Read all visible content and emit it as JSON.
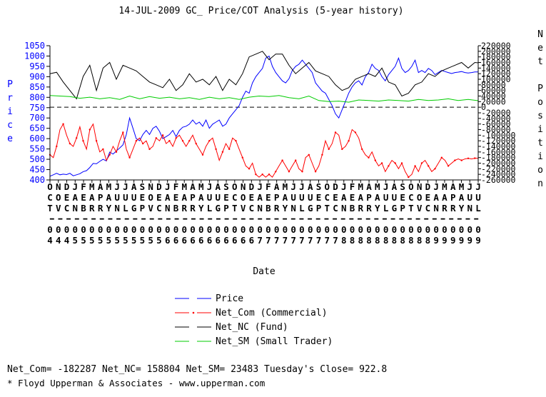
{
  "chart_data": {
    "type": "line",
    "title": "14-JUL-2009 GC_ Price/COT Analysis (5-year history)",
    "xlabel": "Date",
    "ylabel": "Price",
    "y2label": "Net Position",
    "ylim": [
      400,
      1050
    ],
    "y2lim": [
      -260000,
      220000
    ],
    "y_ticks": [
      400,
      450,
      500,
      550,
      600,
      650,
      700,
      750,
      800,
      850,
      900,
      950,
      1000,
      1050
    ],
    "y2_ticks": [
      220000,
      200000,
      180000,
      160000,
      140000,
      120000,
      100000,
      80000,
      60000,
      40000,
      20000,
      0,
      -20000,
      -40000,
      -60000,
      -80000,
      -100000,
      -120000,
      -140000,
      -160000,
      -180000,
      -200000,
      -220000,
      -240000,
      -260000
    ],
    "x_tick_labels": [
      {
        "m": "O",
        "a": "C",
        "b": "T",
        "yr": "04"
      },
      {
        "m": "N",
        "a": "O",
        "b": "V",
        "yr": "04"
      },
      {
        "m": "D",
        "a": "E",
        "b": "C",
        "yr": "04"
      },
      {
        "m": "J",
        "a": "A",
        "b": "N",
        "yr": "05"
      },
      {
        "m": "F",
        "a": "E",
        "b": "B",
        "yr": "05"
      },
      {
        "m": "M",
        "a": "A",
        "b": "R",
        "yr": "05"
      },
      {
        "m": "A",
        "a": "P",
        "b": "R",
        "yr": "05"
      },
      {
        "m": "M",
        "a": "A",
        "b": "Y",
        "yr": "05"
      },
      {
        "m": "J",
        "a": "U",
        "b": "N",
        "yr": "05"
      },
      {
        "m": "J",
        "a": "U",
        "b": "L",
        "yr": "05"
      },
      {
        "m": "A",
        "a": "U",
        "b": "G",
        "yr": "05"
      },
      {
        "m": "S",
        "a": "E",
        "b": "P",
        "yr": "05"
      },
      {
        "m": "N",
        "a": "O",
        "b": "V",
        "yr": "05"
      },
      {
        "m": "D",
        "a": "E",
        "b": "C",
        "yr": "05"
      },
      {
        "m": "J",
        "a": "A",
        "b": "N",
        "yr": "06"
      },
      {
        "m": "F",
        "a": "E",
        "b": "B",
        "yr": "06"
      },
      {
        "m": "M",
        "a": "A",
        "b": "R",
        "yr": "06"
      },
      {
        "m": "A",
        "a": "P",
        "b": "R",
        "yr": "06"
      },
      {
        "m": "M",
        "a": "A",
        "b": "Y",
        "yr": "06"
      },
      {
        "m": "J",
        "a": "U",
        "b": "L",
        "yr": "06"
      },
      {
        "m": "A",
        "a": "U",
        "b": "G",
        "yr": "06"
      },
      {
        "m": "S",
        "a": "E",
        "b": "P",
        "yr": "06"
      },
      {
        "m": "O",
        "a": "C",
        "b": "T",
        "yr": "06"
      },
      {
        "m": "N",
        "a": "O",
        "b": "V",
        "yr": "06"
      },
      {
        "m": "D",
        "a": "E",
        "b": "C",
        "yr": "06"
      },
      {
        "m": "J",
        "a": "A",
        "b": "N",
        "yr": "07"
      },
      {
        "m": "F",
        "a": "E",
        "b": "B",
        "yr": "07"
      },
      {
        "m": "A",
        "a": "P",
        "b": "R",
        "yr": "07"
      },
      {
        "m": "M",
        "a": "A",
        "b": "Y",
        "yr": "07"
      },
      {
        "m": "J",
        "a": "U",
        "b": "N",
        "yr": "07"
      },
      {
        "m": "J",
        "a": "U",
        "b": "L",
        "yr": "07"
      },
      {
        "m": "A",
        "a": "U",
        "b": "G",
        "yr": "07"
      },
      {
        "m": "S",
        "a": "E",
        "b": "P",
        "yr": "07"
      },
      {
        "m": "O",
        "a": "C",
        "b": "T",
        "yr": "07"
      },
      {
        "m": "D",
        "a": "E",
        "b": "C",
        "yr": "07"
      },
      {
        "m": "J",
        "a": "A",
        "b": "N",
        "yr": "08"
      },
      {
        "m": "F",
        "a": "E",
        "b": "B",
        "yr": "08"
      },
      {
        "m": "M",
        "a": "A",
        "b": "R",
        "yr": "08"
      },
      {
        "m": "A",
        "a": "P",
        "b": "R",
        "yr": "08"
      },
      {
        "m": "M",
        "a": "A",
        "b": "Y",
        "yr": "08"
      },
      {
        "m": "J",
        "a": "U",
        "b": "L",
        "yr": "08"
      },
      {
        "m": "A",
        "a": "U",
        "b": "G",
        "yr": "08"
      },
      {
        "m": "S",
        "a": "E",
        "b": "P",
        "yr": "08"
      },
      {
        "m": "O",
        "a": "C",
        "b": "T",
        "yr": "08"
      },
      {
        "m": "N",
        "a": "O",
        "b": "V",
        "yr": "08"
      },
      {
        "m": "D",
        "a": "E",
        "b": "C",
        "yr": "08"
      },
      {
        "m": "J",
        "a": "A",
        "b": "N",
        "yr": "09"
      },
      {
        "m": "M",
        "a": "A",
        "b": "R",
        "yr": "09"
      },
      {
        "m": "A",
        "a": "P",
        "b": "R",
        "yr": "09"
      },
      {
        "m": "M",
        "a": "A",
        "b": "Y",
        "yr": "09"
      },
      {
        "m": "J",
        "a": "U",
        "b": "N",
        "yr": "09"
      },
      {
        "m": "J",
        "a": "U",
        "b": "L",
        "yr": "09"
      }
    ],
    "series": [
      {
        "name": "Price",
        "axis": "left",
        "color": "#0000ff",
        "style": "solid",
        "x": [
          0,
          2,
          4,
          6,
          8,
          10,
          12,
          14,
          16,
          18,
          20,
          22,
          24,
          26,
          28,
          30,
          32,
          34,
          36,
          38,
          40,
          42,
          44,
          46,
          48,
          50,
          52,
          54,
          56,
          58,
          60,
          62,
          64,
          66,
          68,
          70,
          72,
          74,
          76,
          78,
          80,
          82,
          84,
          86,
          88,
          90,
          92,
          94,
          96,
          98,
          100,
          102,
          104,
          106,
          108,
          110,
          112,
          114,
          116,
          118,
          120,
          122,
          124,
          126,
          128,
          130,
          132,
          134,
          136,
          138,
          140,
          142,
          144,
          146,
          148,
          150,
          152,
          154,
          156,
          158,
          160,
          162,
          164,
          166,
          168,
          170,
          172,
          174,
          176,
          178,
          180,
          182,
          184,
          186,
          188,
          190,
          192,
          194,
          196,
          198,
          200,
          202,
          204,
          206,
          208,
          210,
          212,
          214,
          216,
          218,
          220,
          222,
          224,
          226,
          228,
          230,
          232,
          234,
          236,
          238,
          240,
          242,
          244,
          246,
          248,
          250,
          252,
          254,
          256,
          258
        ],
        "values": [
          418,
          425,
          432,
          425,
          428,
          426,
          432,
          420,
          425,
          430,
          440,
          445,
          460,
          480,
          478,
          490,
          500,
          492,
          535,
          525,
          540,
          555,
          570,
          620,
          700,
          650,
          600,
          590,
          620,
          640,
          620,
          650,
          660,
          635,
          600,
          610,
          620,
          640,
          610,
          640,
          655,
          660,
          670,
          690,
          670,
          680,
          660,
          690,
          650,
          670,
          680,
          690,
          660,
          670,
          700,
          720,
          740,
          760,
          800,
          830,
          820,
          870,
          900,
          920,
          940,
          990,
          1000,
          950,
          920,
          900,
          880,
          870,
          890,
          930,
          950,
          960,
          980,
          960,
          940,
          920,
          870,
          850,
          830,
          820,
          790,
          760,
          720,
          700,
          740,
          780,
          820,
          850,
          870,
          880,
          860,
          900,
          920,
          960,
          940,
          930,
          900,
          880,
          910,
          930,
          950,
          990,
          940,
          920,
          930,
          950,
          980,
          920,
          930,
          920,
          940,
          930,
          910,
          920,
          930,
          925,
          920,
          915,
          920,
          922,
          925,
          920,
          918,
          920,
          923,
          922.8
        ]
      },
      {
        "name": "Net_Com (Commercial)",
        "axis": "right",
        "color": "#ff0000",
        "style": "dash-dot",
        "x": [
          0,
          2,
          4,
          6,
          8,
          10,
          12,
          14,
          16,
          18,
          20,
          22,
          24,
          26,
          28,
          30,
          32,
          34,
          36,
          38,
          40,
          42,
          44,
          46,
          48,
          50,
          52,
          54,
          56,
          58,
          60,
          62,
          64,
          66,
          68,
          70,
          72,
          74,
          76,
          78,
          80,
          82,
          84,
          86,
          88,
          90,
          92,
          94,
          96,
          98,
          100,
          102,
          104,
          106,
          108,
          110,
          112,
          114,
          116,
          118,
          120,
          122,
          124,
          126,
          128,
          130,
          132,
          134,
          136,
          138,
          140,
          142,
          144,
          146,
          148,
          150,
          152,
          154,
          156,
          158,
          160,
          162,
          164,
          166,
          168,
          170,
          172,
          174,
          176,
          178,
          180,
          182,
          184,
          186,
          188,
          190,
          192,
          194,
          196,
          198,
          200,
          202,
          204,
          206,
          208,
          210,
          212,
          214,
          216,
          218,
          220,
          222,
          224,
          226,
          228,
          230,
          232,
          234,
          236,
          238,
          240,
          242,
          244,
          246,
          248,
          250,
          252,
          254,
          256,
          258
        ],
        "values": [
          -170000,
          -180000,
          -140000,
          -80000,
          -60000,
          -100000,
          -130000,
          -140000,
          -110000,
          -70000,
          -120000,
          -150000,
          -80000,
          -60000,
          -120000,
          -160000,
          -150000,
          -190000,
          -170000,
          -140000,
          -160000,
          -120000,
          -90000,
          -150000,
          -180000,
          -150000,
          -120000,
          -110000,
          -130000,
          -120000,
          -150000,
          -140000,
          -110000,
          -120000,
          -100000,
          -130000,
          -120000,
          -140000,
          -110000,
          -100000,
          -120000,
          -140000,
          -120000,
          -100000,
          -130000,
          -150000,
          -170000,
          -140000,
          -120000,
          -110000,
          -150000,
          -190000,
          -160000,
          -130000,
          -150000,
          -110000,
          -120000,
          -150000,
          -180000,
          -210000,
          -220000,
          -200000,
          -240000,
          -250000,
          -240000,
          -250000,
          -240000,
          -250000,
          -230000,
          -210000,
          -190000,
          -210000,
          -230000,
          -210000,
          -190000,
          -220000,
          -230000,
          -180000,
          -170000,
          -200000,
          -230000,
          -210000,
          -170000,
          -120000,
          -150000,
          -130000,
          -90000,
          -100000,
          -150000,
          -140000,
          -120000,
          -80000,
          -90000,
          -110000,
          -150000,
          -170000,
          -180000,
          -160000,
          -190000,
          -210000,
          -200000,
          -230000,
          -210000,
          -190000,
          -200000,
          -220000,
          -200000,
          -230000,
          -250000,
          -240000,
          -210000,
          -230000,
          -200000,
          -190000,
          -210000,
          -230000,
          -220000,
          -200000,
          -180000,
          -190000,
          -210000,
          -200000,
          -190000,
          -185000,
          -190000,
          -185000,
          -183000,
          -185000,
          -182287,
          -182287
        ]
      },
      {
        "name": "Net_NC (Fund)",
        "axis": "right",
        "color": "#000000",
        "style": "solid",
        "x": [
          0,
          4,
          8,
          12,
          16,
          20,
          24,
          28,
          32,
          36,
          40,
          44,
          48,
          52,
          56,
          60,
          64,
          68,
          72,
          76,
          80,
          84,
          88,
          92,
          96,
          100,
          104,
          108,
          112,
          116,
          120,
          124,
          128,
          132,
          136,
          140,
          144,
          148,
          152,
          156,
          160,
          164,
          168,
          172,
          176,
          180,
          184,
          188,
          192,
          196,
          200,
          204,
          208,
          212,
          216,
          220,
          224,
          228,
          232,
          236,
          240,
          244,
          248,
          252,
          256,
          258
        ],
        "values": [
          120000,
          125000,
          90000,
          60000,
          30000,
          110000,
          150000,
          60000,
          140000,
          160000,
          100000,
          150000,
          140000,
          130000,
          110000,
          90000,
          80000,
          70000,
          100000,
          60000,
          80000,
          120000,
          90000,
          100000,
          80000,
          110000,
          60000,
          100000,
          80000,
          120000,
          180000,
          190000,
          200000,
          170000,
          190000,
          190000,
          150000,
          120000,
          140000,
          160000,
          130000,
          120000,
          110000,
          80000,
          60000,
          70000,
          100000,
          110000,
          120000,
          110000,
          140000,
          90000,
          80000,
          40000,
          50000,
          80000,
          90000,
          120000,
          110000,
          130000,
          140000,
          150000,
          160000,
          140000,
          160000,
          158804
        ]
      },
      {
        "name": "Net_SM (Small Trader)",
        "axis": "right",
        "color": "#00cc00",
        "style": "solid",
        "x": [
          0,
          6,
          12,
          18,
          24,
          30,
          36,
          42,
          48,
          54,
          60,
          66,
          72,
          78,
          84,
          90,
          96,
          102,
          108,
          114,
          120,
          126,
          132,
          138,
          144,
          150,
          156,
          162,
          168,
          174,
          180,
          186,
          192,
          198,
          204,
          210,
          216,
          222,
          228,
          234,
          240,
          246,
          252,
          258
        ],
        "values": [
          42000,
          40000,
          38000,
          32000,
          36000,
          30000,
          34000,
          28000,
          40000,
          30000,
          38000,
          32000,
          36000,
          30000,
          34000,
          28000,
          36000,
          30000,
          34000,
          28000,
          36000,
          40000,
          38000,
          42000,
          34000,
          30000,
          40000,
          24000,
          20000,
          22000,
          18000,
          26000,
          24000,
          22000,
          26000,
          24000,
          22000,
          28000,
          24000,
          26000,
          30000,
          24000,
          28000,
          23483
        ]
      }
    ],
    "legend": {
      "placement": "bottom-center",
      "entries": [
        "Price",
        "Net_Com (Commercial)",
        "Net_NC (Fund)",
        "Net_SM (Small Trader)"
      ]
    },
    "grid": false,
    "reference_line": {
      "axis": "right",
      "value": 0,
      "style": "dashed"
    }
  },
  "footer": {
    "summary": "Net_Com= -182287 Net_NC= 158804 Net_SM= 23483 Tuesday's Close= 922.8",
    "credit": "* Floyd Upperman & Associates - www.upperman.com"
  },
  "colors": {
    "price": "#0000ff",
    "commercial": "#ff0000",
    "fund": "#000000",
    "small": "#00cc00",
    "left_axis_labels": "#0000ff"
  }
}
